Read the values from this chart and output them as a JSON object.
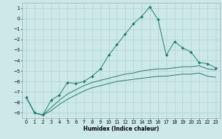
{
  "xlabel": "Humidex (Indice chaleur)",
  "background_color": "#cce8e8",
  "grid_color": "#aacccc",
  "line_color": "#1a7a6a",
  "xlim": [
    -0.5,
    23.5
  ],
  "ylim": [
    -9.5,
    1.5
  ],
  "yticks": [
    1,
    0,
    -1,
    -2,
    -3,
    -4,
    -5,
    -6,
    -7,
    -8,
    -9
  ],
  "xticks": [
    0,
    1,
    2,
    3,
    4,
    5,
    6,
    7,
    8,
    9,
    10,
    11,
    12,
    13,
    14,
    15,
    16,
    17,
    18,
    19,
    20,
    21,
    22,
    23
  ],
  "series1_x": [
    0,
    1,
    2,
    3,
    4,
    5,
    6,
    7,
    8,
    9,
    10,
    11,
    12,
    13,
    14,
    15,
    16,
    17,
    18,
    19,
    20,
    21,
    22,
    23
  ],
  "series1_y": [
    -7.5,
    -9.0,
    -9.2,
    -7.8,
    -7.3,
    -6.1,
    -6.2,
    -6.0,
    -5.5,
    -4.8,
    -3.5,
    -2.5,
    -1.5,
    -0.5,
    0.2,
    1.1,
    -0.1,
    -3.5,
    -2.2,
    -2.8,
    -3.2,
    -4.2,
    -4.3,
    -4.7
  ],
  "series2_x": [
    0,
    1,
    2,
    3,
    4,
    5,
    6,
    7,
    8,
    9,
    10,
    11,
    12,
    13,
    14,
    15,
    16,
    17,
    18,
    19,
    20,
    21,
    22,
    23
  ],
  "series2_y": [
    -7.5,
    -9.0,
    -9.2,
    -8.5,
    -7.8,
    -7.2,
    -6.8,
    -6.4,
    -6.1,
    -5.9,
    -5.7,
    -5.5,
    -5.3,
    -5.2,
    -5.0,
    -4.9,
    -4.8,
    -4.8,
    -4.7,
    -4.6,
    -4.6,
    -4.5,
    -4.8,
    -4.9
  ],
  "series3_x": [
    0,
    1,
    2,
    3,
    4,
    5,
    6,
    7,
    8,
    9,
    10,
    11,
    12,
    13,
    14,
    15,
    16,
    17,
    18,
    19,
    20,
    21,
    22,
    23
  ],
  "series3_y": [
    -7.5,
    -9.0,
    -9.2,
    -8.8,
    -8.2,
    -7.7,
    -7.3,
    -6.9,
    -6.6,
    -6.4,
    -6.2,
    -6.0,
    -5.9,
    -5.8,
    -5.7,
    -5.6,
    -5.5,
    -5.5,
    -5.4,
    -5.3,
    -5.3,
    -5.2,
    -5.5,
    -5.6
  ],
  "xlabel_fontsize": 5.5,
  "tick_fontsize": 4.8,
  "marker_size": 2.0,
  "line_width": 0.7
}
